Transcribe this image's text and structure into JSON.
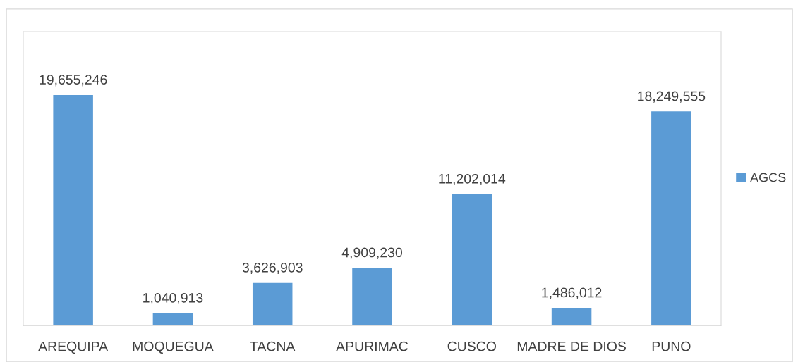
{
  "chart_data": {
    "type": "bar",
    "categories": [
      "AREQUIPA",
      "MOQUEGUA",
      "TACNA",
      "APURIMAC",
      "CUSCO",
      "MADRE DE DIOS",
      "PUNO"
    ],
    "series": [
      {
        "name": "AGCS",
        "color": "#5b9bd5",
        "values": [
          19655246,
          1040913,
          3626903,
          4909230,
          11202014,
          1486012,
          18249555
        ],
        "value_labels": [
          "19,655,246",
          "1,040,913",
          "3,626,903",
          "4,909,230",
          "11,202,014",
          "1,486,012",
          "18,249,555"
        ]
      }
    ],
    "legend": "right",
    "tick_labels": "x",
    "grid": false
  }
}
